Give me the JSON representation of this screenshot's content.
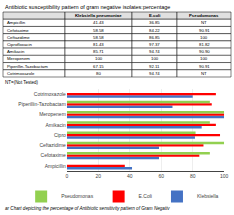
{
  "chart_data": [
    {
      "type": "table",
      "title": "Antibiotic susceptibility pattern of gram negative isolates:percentage",
      "categories": [
        "Ampicillin",
        "Cefotaxime",
        "Ceftazidime",
        "Ciprofloxacin",
        "Amikacin",
        "Meropenem",
        "Piperillin-Tazobactam",
        "Cotrimoxazole"
      ],
      "series": [
        {
          "name": "Klebsiella pneumoniae",
          "values": [
            41.43,
            58.58,
            58.58,
            81.43,
            85.71,
            100,
            67.15,
            80
          ]
        },
        {
          "name": "E.coli",
          "values": [
            36.85,
            84.22,
            86.85,
            97.37,
            94.74,
            100,
            92.11,
            94.74
          ]
        },
        {
          "name": "Pseudomonas",
          "values": [
            null,
            90.91,
            100,
            81.82,
            90.9,
            100,
            90.91,
            null
          ],
          "value_labels": [
            "NT",
            "90.91",
            "100",
            "81.82",
            "90.90",
            "100",
            "90.91",
            "NT"
          ]
        }
      ],
      "annotations": [
        "NT=(Not Tested)"
      ]
    },
    {
      "type": "bar",
      "orientation": "horizontal",
      "categories": [
        "Ampicillin",
        "Cefotaxime",
        "Ceftazidime",
        "Cipro",
        "Amikacin",
        "Meropenem",
        "Piperillin-Tazobactam",
        "Cotrimoxazole"
      ],
      "series": [
        {
          "name": "Klebsiella",
          "color": "#4472c4",
          "values": [
            41.43,
            58.58,
            58.58,
            81.43,
            85.71,
            100,
            67.15,
            80
          ]
        },
        {
          "name": "E.Coli",
          "color": "#ff0000",
          "values": [
            36.85,
            84.22,
            86.85,
            97.37,
            94.74,
            100,
            92.11,
            94.74
          ]
        },
        {
          "name": "Pseudomonas",
          "color": "#92d050",
          "values": [
            null,
            90.91,
            100,
            81.82,
            90.9,
            100,
            90.91,
            null
          ]
        }
      ],
      "xlim": [
        0,
        100
      ],
      "xticks": [
        0,
        20,
        40,
        60,
        80,
        100
      ],
      "grid": true,
      "legend": "bottom",
      "annotations": [
        "ar Chart depicting the percentage of Antibiotic sensitivity pattern of Gram Negativ"
      ]
    }
  ]
}
